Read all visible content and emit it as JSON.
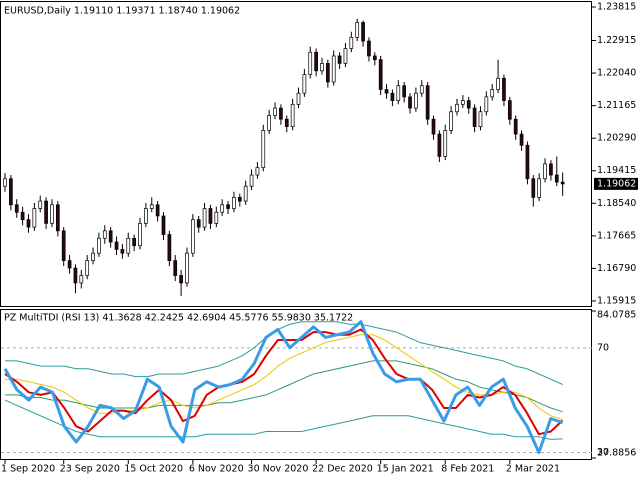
{
  "chart_data": [
    {
      "type": "candlestick",
      "title": "EURUSD,Daily  1.19110 1.19371 1.18740 1.19062",
      "ylim": [
        1.1578,
        1.2395
      ],
      "yticks": [
        1.23815,
        1.22915,
        {
          "value": 1.2204,
          "label": "1.22040"
        },
        1.21165,
        {
          "value": 1.2029,
          "label": "1.20290"
        },
        1.19415,
        {
          "value": 1.1854,
          "label": "1.18540"
        },
        1.17665,
        {
          "value": 1.1679,
          "label": "1.16790"
        },
        1.15915
      ],
      "x_labels": [
        {
          "value": 0,
          "label": "1 Sep 2020"
        },
        {
          "value": 10,
          "label": "23 Sep 2020"
        },
        {
          "value": 21,
          "label": "15 Oct 2020"
        },
        {
          "value": 32,
          "label": "6 Nov 2020"
        },
        {
          "value": 42,
          "label": "30 Nov 2020"
        },
        {
          "value": 53,
          "label": "22 Dec 2020"
        },
        {
          "value": 64,
          "label": "15 Jan 2021"
        },
        {
          "value": 75,
          "label": "8 Feb 2021"
        },
        {
          "value": 86,
          "label": "2 Mar 2021"
        }
      ],
      "up_color": "#ffffff",
      "down_color": "#2b0a0a",
      "candles": [
        [
          1.19,
          1.1935,
          1.1885,
          1.192
        ],
        [
          1.192,
          1.193,
          1.1835,
          1.185
        ],
        [
          1.185,
          1.1865,
          1.1815,
          1.183
        ],
        [
          1.183,
          1.1845,
          1.1795,
          1.181
        ],
        [
          1.181,
          1.1825,
          1.1775,
          1.179
        ],
        [
          1.179,
          1.1855,
          1.178,
          1.184
        ],
        [
          1.184,
          1.1875,
          1.183,
          1.186
        ],
        [
          1.186,
          1.187,
          1.1785,
          1.18
        ],
        [
          1.18,
          1.1865,
          1.179,
          1.185
        ],
        [
          1.185,
          1.186,
          1.1765,
          1.178
        ],
        [
          1.178,
          1.179,
          1.1685,
          1.17
        ],
        [
          1.17,
          1.1715,
          1.1665,
          1.168
        ],
        [
          1.168,
          1.169,
          1.1612,
          1.164
        ],
        [
          1.164,
          1.1675,
          1.1625,
          1.166
        ],
        [
          1.166,
          1.1715,
          1.165,
          1.17
        ],
        [
          1.17,
          1.1735,
          1.169,
          1.172
        ],
        [
          1.172,
          1.1775,
          1.171,
          1.176
        ],
        [
          1.176,
          1.1795,
          1.1745,
          1.178
        ],
        [
          1.178,
          1.179,
          1.1735,
          1.175
        ],
        [
          1.175,
          1.1765,
          1.1715,
          1.173
        ],
        [
          1.173,
          1.1745,
          1.1705,
          1.172
        ],
        [
          1.172,
          1.1775,
          1.171,
          1.176
        ],
        [
          1.176,
          1.177,
          1.1725,
          1.174
        ],
        [
          1.174,
          1.1815,
          1.173,
          1.18
        ],
        [
          1.18,
          1.1855,
          1.179,
          1.184
        ],
        [
          1.184,
          1.187,
          1.183,
          1.185
        ],
        [
          1.185,
          1.186,
          1.1805,
          1.182
        ],
        [
          1.182,
          1.183,
          1.1755,
          1.177
        ],
        [
          1.177,
          1.178,
          1.1685,
          1.17
        ],
        [
          1.17,
          1.1715,
          1.1645,
          1.166
        ],
        [
          1.166,
          1.1675,
          1.1605,
          1.164
        ],
        [
          1.164,
          1.1735,
          1.163,
          1.172
        ],
        [
          1.172,
          1.1825,
          1.171,
          1.181
        ],
        [
          1.181,
          1.182,
          1.1775,
          1.179
        ],
        [
          1.179,
          1.1855,
          1.178,
          1.184
        ],
        [
          1.184,
          1.185,
          1.1785,
          1.18
        ],
        [
          1.18,
          1.1845,
          1.179,
          1.183
        ],
        [
          1.183,
          1.1865,
          1.182,
          1.185
        ],
        [
          1.185,
          1.186,
          1.1825,
          1.184
        ],
        [
          1.184,
          1.1885,
          1.183,
          1.187
        ],
        [
          1.187,
          1.188,
          1.1845,
          1.186
        ],
        [
          1.186,
          1.1915,
          1.185,
          1.19
        ],
        [
          1.19,
          1.1945,
          1.189,
          1.193
        ],
        [
          1.193,
          1.1965,
          1.192,
          1.195
        ],
        [
          1.195,
          1.2065,
          1.194,
          1.205
        ],
        [
          1.205,
          1.2105,
          1.204,
          1.209
        ],
        [
          1.209,
          1.2125,
          1.208,
          1.211
        ],
        [
          1.211,
          1.212,
          1.2065,
          1.208
        ],
        [
          1.208,
          1.209,
          1.2045,
          1.206
        ],
        [
          1.206,
          1.2135,
          1.205,
          1.212
        ],
        [
          1.212,
          1.2165,
          1.211,
          1.215
        ],
        [
          1.215,
          1.2215,
          1.214,
          1.22
        ],
        [
          1.22,
          1.2275,
          1.219,
          1.226
        ],
        [
          1.226,
          1.227,
          1.2195,
          1.221
        ],
        [
          1.221,
          1.2245,
          1.22,
          1.223
        ],
        [
          1.223,
          1.224,
          1.2165,
          1.218
        ],
        [
          1.218,
          1.2265,
          1.217,
          1.225
        ],
        [
          1.225,
          1.226,
          1.2215,
          1.223
        ],
        [
          1.223,
          1.2285,
          1.222,
          1.227
        ],
        [
          1.227,
          1.2315,
          1.226,
          1.23
        ],
        [
          1.23,
          1.235,
          1.229,
          1.234
        ],
        [
          1.234,
          1.2345,
          1.2275,
          1.229
        ],
        [
          1.229,
          1.23,
          1.2235,
          1.225
        ],
        [
          1.225,
          1.226,
          1.2225,
          1.224
        ],
        [
          1.224,
          1.225,
          1.2145,
          1.216
        ],
        [
          1.216,
          1.2175,
          1.2135,
          1.215
        ],
        [
          1.215,
          1.216,
          1.2115,
          1.213
        ],
        [
          1.213,
          1.2185,
          1.212,
          1.217
        ],
        [
          1.217,
          1.218,
          1.2125,
          1.214
        ],
        [
          1.214,
          1.215,
          1.2095,
          1.211
        ],
        [
          1.211,
          1.2165,
          1.21,
          1.215
        ],
        [
          1.215,
          1.2185,
          1.214,
          1.217
        ],
        [
          1.217,
          1.218,
          1.2065,
          1.208
        ],
        [
          1.208,
          1.209,
          1.2025,
          1.204
        ],
        [
          1.204,
          1.205,
          1.1965,
          1.198
        ],
        [
          1.198,
          1.2065,
          1.197,
          1.205
        ],
        [
          1.205,
          1.2115,
          1.204,
          1.21
        ],
        [
          1.21,
          1.2135,
          1.209,
          1.212
        ],
        [
          1.212,
          1.2145,
          1.211,
          1.213
        ],
        [
          1.213,
          1.214,
          1.2095,
          1.211
        ],
        [
          1.211,
          1.212,
          1.2045,
          1.206
        ],
        [
          1.206,
          1.2115,
          1.205,
          1.21
        ],
        [
          1.21,
          1.2155,
          1.209,
          1.214
        ],
        [
          1.214,
          1.2175,
          1.213,
          1.216
        ],
        [
          1.216,
          1.224,
          1.215,
          1.219
        ],
        [
          1.219,
          1.22,
          1.2115,
          1.213
        ],
        [
          1.213,
          1.214,
          1.2065,
          1.208
        ],
        [
          1.208,
          1.209,
          1.2025,
          1.204
        ],
        [
          1.204,
          1.205,
          1.1995,
          1.201
        ],
        [
          1.201,
          1.202,
          1.1905,
          1.192
        ],
        [
          1.192,
          1.193,
          1.1845,
          1.187
        ],
        [
          1.187,
          1.1935,
          1.186,
          1.192
        ],
        [
          1.192,
          1.1975,
          1.191,
          1.196
        ],
        [
          1.196,
          1.197,
          1.1915,
          1.193
        ],
        [
          1.193,
          1.198,
          1.19,
          1.1911
        ],
        [
          1.1911,
          1.19371,
          1.1874,
          1.19062
        ]
      ]
    },
    {
      "type": "line",
      "title": "PZ MultiTDI (RSI 13) 41.3628 42.2425 42.6904 45.5776 55.9830 35.1722",
      "ylim": [
        27.8856,
        84.0785
      ],
      "yticks": [
        84.0785,
        70,
        30,
        27.8856
      ],
      "series": [
        {
          "color": "#2a9d9d",
          "line_width": 1,
          "values": [
            65,
            65,
            64,
            63,
            63,
            63,
            62,
            62,
            61,
            60,
            60,
            59,
            59,
            60,
            60,
            60,
            61,
            62,
            63,
            65,
            67,
            70,
            74,
            77,
            79,
            80,
            80,
            80,
            80,
            79,
            79,
            78,
            77,
            76,
            74,
            72,
            71,
            70,
            69,
            68,
            67,
            66,
            65,
            63,
            62,
            60,
            58,
            55.983
          ]
        },
        {
          "color": "#2a9d9d",
          "line_width": 1,
          "values": [
            50,
            48,
            46,
            44,
            42,
            40,
            38,
            37,
            36,
            36,
            36,
            36,
            36,
            36,
            36,
            36,
            36,
            37,
            37,
            37,
            37,
            37,
            38,
            38,
            38,
            38,
            39,
            40,
            41,
            42,
            43,
            44,
            44,
            44,
            44,
            43,
            42,
            41,
            40,
            39,
            38,
            37,
            37,
            36,
            36,
            36,
            35,
            35.1722
          ]
        },
        {
          "color": "#2e9a6e",
          "line_width": 1,
          "values": [
            52,
            52,
            51,
            51,
            50,
            50,
            49,
            48,
            47,
            47,
            47,
            47,
            47,
            48,
            48,
            48,
            48,
            48,
            49,
            49,
            50,
            51,
            52,
            54,
            56,
            58,
            60,
            61,
            62,
            63,
            64,
            65,
            65,
            65,
            64,
            63,
            62,
            60,
            58,
            57,
            55,
            54,
            53,
            52,
            51,
            49,
            47,
            45.5776
          ]
        },
        {
          "color": "#f2c200",
          "line_width": 1,
          "values": [
            58,
            58,
            57,
            56,
            55,
            53,
            50,
            47,
            45,
            45,
            46,
            46,
            47,
            49,
            50,
            48,
            47,
            48,
            50,
            52,
            54,
            56,
            59,
            63,
            66,
            68,
            70,
            72,
            73,
            74,
            75,
            75,
            73,
            70,
            67,
            64,
            61,
            58,
            55,
            53,
            52,
            52,
            53,
            53,
            51,
            47,
            44,
            42.6904
          ]
        },
        {
          "color": "#dd0000",
          "line_width": 2,
          "values": [
            60,
            57,
            53,
            52,
            53,
            47,
            40,
            38,
            42,
            46,
            46,
            45,
            50,
            54,
            50,
            42,
            44,
            52,
            55,
            56,
            57,
            60,
            67,
            73,
            73,
            73,
            76,
            76,
            75,
            75,
            77,
            73,
            66,
            60,
            58,
            58,
            54,
            47,
            47,
            52,
            51,
            52,
            55,
            52,
            45,
            37,
            38,
            42.2425
          ]
        },
        {
          "color": "#3a9be6",
          "line_width": 3,
          "values": [
            62,
            54,
            50,
            55,
            53,
            40,
            34,
            40,
            48,
            47,
            43,
            46,
            58,
            55,
            40,
            34,
            54,
            57,
            55,
            56,
            58,
            64,
            74,
            77,
            70,
            74,
            78,
            74,
            75,
            76,
            80,
            68,
            60,
            57,
            58,
            58,
            50,
            42,
            52,
            55,
            48,
            55,
            58,
            47,
            40,
            30,
            43,
            41.3628
          ]
        }
      ]
    }
  ]
}
